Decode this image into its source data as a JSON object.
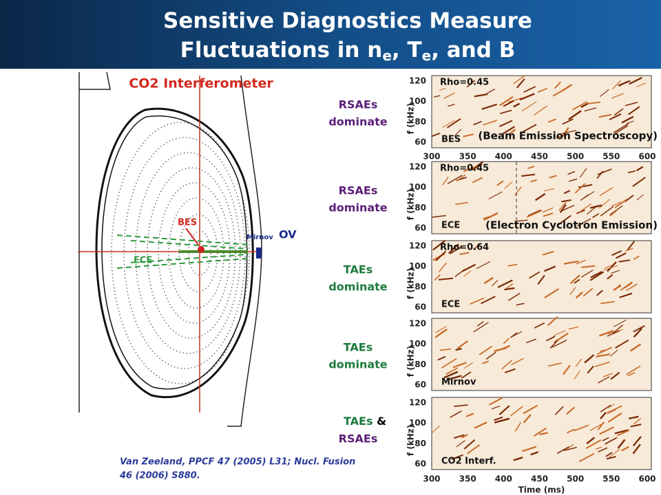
{
  "header": {
    "line1": "Sensitive Diagnostics Measure",
    "line2": [
      "Fluctuations in n",
      "e",
      ", T",
      "e",
      ", and B"
    ]
  },
  "diagram": {
    "title": "CO2 Interferometer",
    "bes": "BES",
    "ece": "ECE",
    "mirnov": "Mirnov",
    "ov": "OV"
  },
  "y_axis_label": "f (kHz)",
  "yticks": [
    120,
    100,
    80,
    60
  ],
  "xticks": [
    300,
    350,
    400,
    450,
    500,
    550,
    600
  ],
  "x_axis_label": "Time (ms)",
  "panels": [
    {
      "mode": [
        {
          "text": "RSAEs",
          "color": "#5a1f78"
        },
        {
          "text": "dominate",
          "color": "#5a1f78"
        }
      ],
      "rho": "Rho=0.45",
      "tag": "BES",
      "note": "(Beam Emission Spectroscopy)"
    },
    {
      "mode": [
        {
          "text": "RSAEs",
          "color": "#5a1f78"
        },
        {
          "text": "dominate",
          "color": "#5a1f78"
        }
      ],
      "rho": "Rho=0.45",
      "tag": "ECE",
      "note": "(Electron Cyclotron Emission)"
    },
    {
      "mode": [
        {
          "text": "TAEs",
          "color": "#1d7a3c"
        },
        {
          "text": "dominate",
          "color": "#1d7a3c"
        }
      ],
      "rho": "Rho=0.64",
      "tag": "ECE"
    },
    {
      "mode": [
        {
          "text": "TAEs",
          "color": "#1d7a3c"
        },
        {
          "text": "dominate",
          "color": "#1d7a3c"
        }
      ],
      "tag": "Mirnov"
    },
    {
      "mode": [
        {
          "text": "TAEs",
          "color": "#1d7a3c"
        },
        {
          "text": "&",
          "color": "#000000"
        },
        {
          "text": "RSAEs",
          "color": "#5a1f78"
        }
      ],
      "tag": "CO2  Interf."
    }
  ],
  "citation": [
    "Van Zeeland, PPCF 47 (2005) L31; Nucl. Fusion",
    "46 (2006) S880."
  ]
}
